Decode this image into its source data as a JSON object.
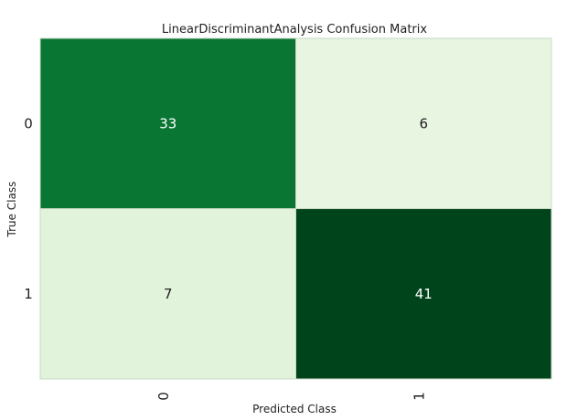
{
  "chart_data": {
    "type": "heatmap",
    "title": "LinearDiscriminantAnalysis Confusion Matrix",
    "xlabel": "Predicted Class",
    "ylabel": "True Class",
    "x_categories": [
      "0",
      "1"
    ],
    "y_categories": [
      "0",
      "1"
    ],
    "values": [
      [
        33,
        6
      ],
      [
        7,
        41
      ]
    ],
    "colormap": "Greens",
    "colors": {
      "low": "#e7f5e1",
      "high": "#00441b",
      "dark_text": "#1f1f1f",
      "light_text": "#ffffff",
      "grid": "#c8d8c3"
    }
  }
}
